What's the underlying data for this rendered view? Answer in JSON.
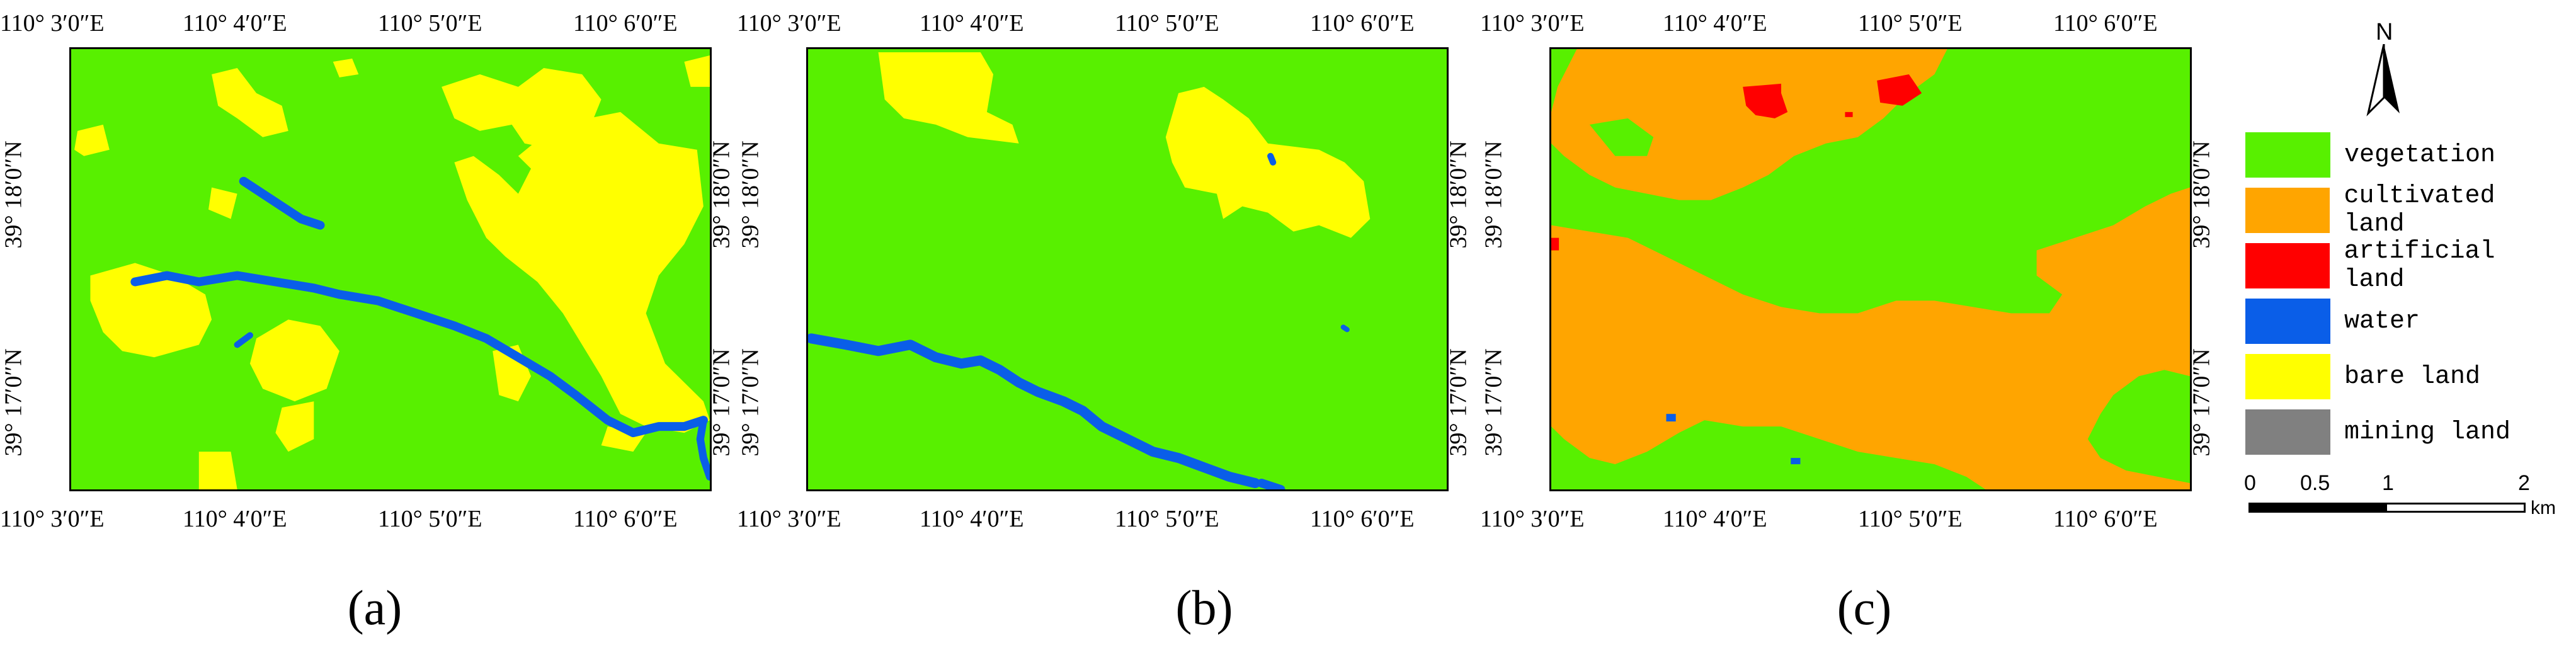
{
  "panels": [
    {
      "label": "(a)",
      "top_ticks": [
        "110°  3′0″E",
        "110°  4′0″E",
        "110°  5′0″E",
        "110°  6′0″E"
      ],
      "bottom_ticks": [
        "110°  3′0″E",
        "110°  4′0″E",
        "110°  5′0″E",
        "110°  6′0″E"
      ],
      "left_ticks": [
        "39°  18′0″N",
        "39°  17′0″N"
      ],
      "right_ticks": [
        "39°  18′0″N",
        "39°  17′0″N"
      ]
    },
    {
      "label": "(b)",
      "top_ticks": [
        "110°  3′0″E",
        "110°  4′0″E",
        "110°  5′0″E",
        "110°  6′0″E"
      ],
      "bottom_ticks": [
        "110°  3′0″E",
        "110°  4′0″E",
        "110°  5′0″E",
        "110°  6′0″E"
      ],
      "left_ticks": [
        "39°  18′0″N",
        "39°  17′0″N"
      ],
      "right_ticks": [
        "39°  18′0″N",
        "39°  17′0″N"
      ]
    },
    {
      "label": "(c)",
      "top_ticks": [
        "110°  3′0″E",
        "110°  4′0″E",
        "110°  5′0″E",
        "110°  6′0″E"
      ],
      "bottom_ticks": [
        "110°  3′0″E",
        "110°  4′0″E",
        "110°  5′0″E",
        "110°  6′0″E"
      ],
      "left_ticks": [
        "39°  18′0″N",
        "39°  17′0″N"
      ],
      "right_ticks": [
        "39°  18′0″N",
        "39°  17′0″N"
      ]
    }
  ],
  "legend": {
    "items": [
      {
        "label": "vegetation",
        "color": "#58f000"
      },
      {
        "label": "cultivated land",
        "color": "#ffa500"
      },
      {
        "label": "artificial land",
        "color": "#ff0000"
      },
      {
        "label": "water",
        "color": "#0a5ee8"
      },
      {
        "label": "bare land",
        "color": "#ffff00"
      },
      {
        "label": "mining land",
        "color": "#808080"
      }
    ]
  },
  "north_arrow": {
    "label": "N"
  },
  "scale_bar": {
    "labels": [
      "0",
      "0.5",
      "1",
      "2"
    ],
    "unit": "km"
  }
}
